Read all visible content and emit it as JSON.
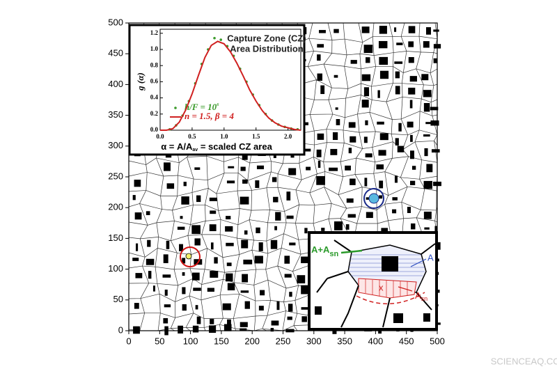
{
  "chart_data": [
    {
      "type": "tessellation",
      "xlim": [
        0,
        500
      ],
      "ylim": [
        0,
        500
      ],
      "xticks": [
        0,
        50,
        100,
        150,
        200,
        250,
        300,
        350,
        400,
        450,
        500
      ],
      "yticks": [
        0,
        50,
        100,
        150,
        200,
        250,
        300,
        350,
        400,
        450,
        500
      ]
    },
    {
      "type": "line",
      "title": [
        "Capture Zone (CZ)",
        "Area Distribution"
      ],
      "ylabel": "g (α)",
      "xlabel": {
        "text": "α = A/A",
        "sub": "av",
        "rest": " = scaled CZ area"
      },
      "xlim": [
        0,
        2.2
      ],
      "ylim": [
        0,
        1.25
      ],
      "xticks": [
        {
          "value": 0,
          "label": "0.0"
        },
        0.5,
        {
          "value": 1,
          "label": "1.0"
        },
        1.5,
        {
          "value": 2,
          "label": "2.0"
        }
      ],
      "yticks": [
        {
          "value": 0,
          "label": "0.0"
        },
        0.2,
        0.4,
        0.6,
        0.8,
        {
          "value": 1,
          "label": "1.0"
        },
        1.2
      ],
      "series": [
        {
          "name": {
            "text": "h/F = 10",
            "sup": "6"
          },
          "color": "#3a9a2a",
          "style": "points",
          "x": [
            0.15,
            0.25,
            0.35,
            0.45,
            0.55,
            0.65,
            0.75,
            0.85,
            0.95,
            1.05,
            1.15,
            1.25,
            1.35,
            1.45,
            1.55,
            1.65,
            1.75,
            1.85,
            1.95,
            2.05,
            2.15
          ],
          "values": [
            0.01,
            0.06,
            0.18,
            0.36,
            0.58,
            0.82,
            1.0,
            1.14,
            1.12,
            1.04,
            0.92,
            0.76,
            0.6,
            0.44,
            0.31,
            0.2,
            0.12,
            0.07,
            0.04,
            0.02,
            0.01
          ]
        },
        {
          "name": "n = 1.5, β = 4",
          "color": "#d02020",
          "style": "line",
          "x": [
            0,
            0.1,
            0.2,
            0.3,
            0.4,
            0.5,
            0.6,
            0.7,
            0.8,
            0.9,
            1.0,
            1.1,
            1.2,
            1.3,
            1.4,
            1.5,
            1.6,
            1.7,
            1.8,
            1.9,
            2.0,
            2.1,
            2.2
          ],
          "values": [
            0,
            0,
            0.02,
            0.1,
            0.25,
            0.45,
            0.68,
            0.9,
            1.05,
            1.1,
            1.07,
            0.97,
            0.83,
            0.67,
            0.5,
            0.36,
            0.24,
            0.15,
            0.09,
            0.05,
            0.03,
            0.01,
            0
          ]
        }
      ]
    }
  ],
  "annotations": {
    "union": {
      "text": "A+A",
      "sub": "sn"
    },
    "area": "A",
    "shared": {
      "text": "A",
      "sub": "sn"
    },
    "mark": "x"
  },
  "watermark": "SCIENCEAQ.COM"
}
